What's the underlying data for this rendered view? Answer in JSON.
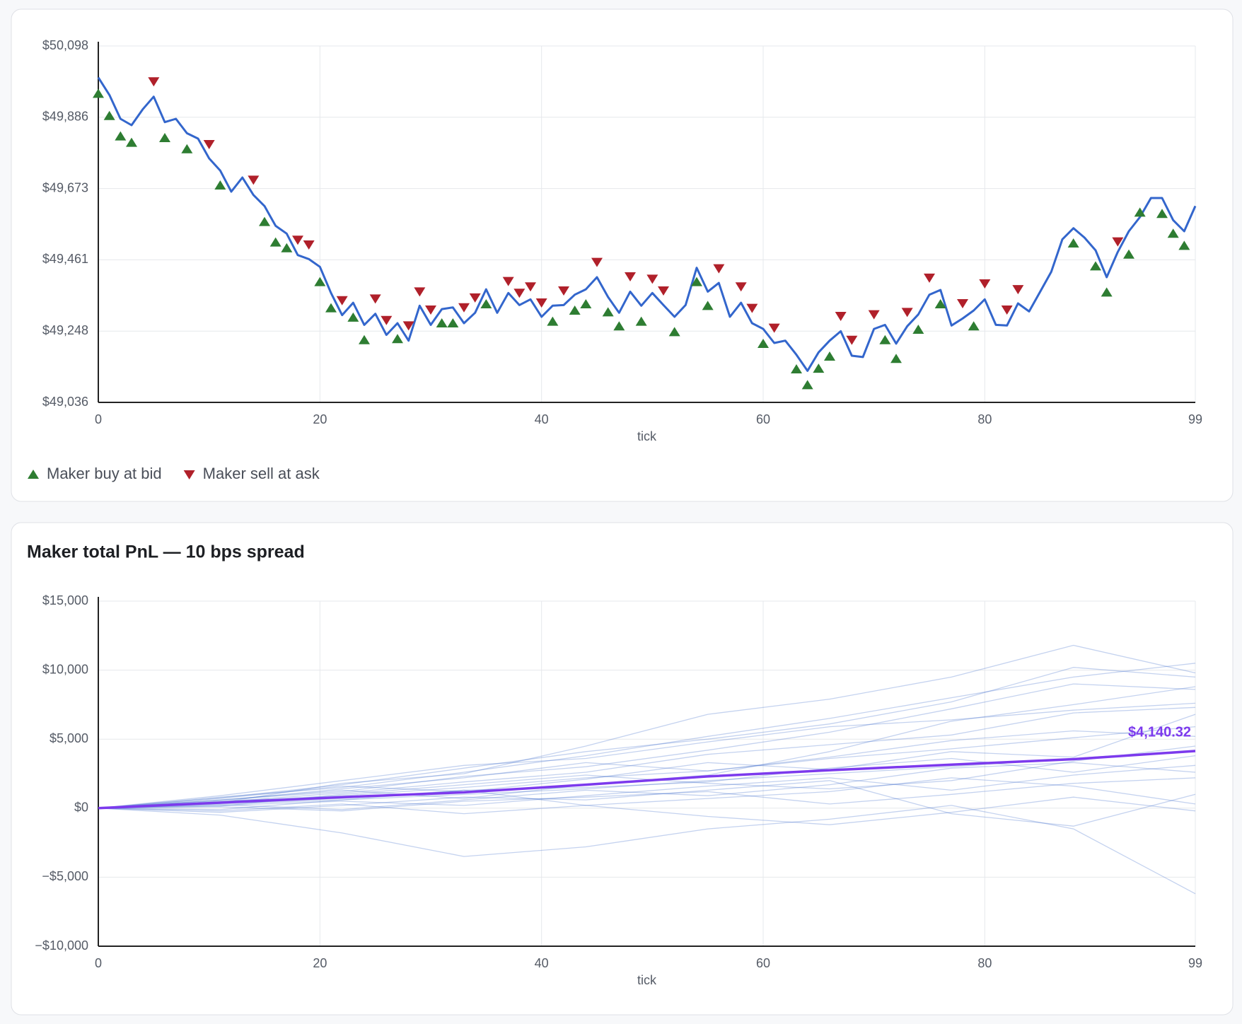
{
  "chart_data": [
    {
      "type": "line",
      "xlabel": "tick",
      "xlim": [
        0,
        99
      ],
      "xticks": [
        0,
        20,
        40,
        60,
        80,
        99
      ],
      "ylim": [
        49036,
        50098
      ],
      "yticks": [
        {
          "value": 49036,
          "label": "$49,036"
        },
        {
          "value": 49248.4,
          "label": "$49,248"
        },
        {
          "value": 49460.8,
          "label": "$49,461"
        },
        {
          "value": 49673.2,
          "label": "$49,673"
        },
        {
          "value": 49885.6,
          "label": "$49,886"
        },
        {
          "value": 50098,
          "label": "$50,098"
        }
      ],
      "grid": true,
      "legend": "bottom-left",
      "series": [
        {
          "type": "line",
          "color": "#3366cc",
          "x": [
            0,
            1,
            2,
            3,
            4,
            5,
            6,
            7,
            8,
            9,
            10,
            11,
            12,
            13,
            14,
            15,
            16,
            17,
            18,
            19,
            20,
            21,
            22,
            23,
            24,
            25,
            26,
            27,
            28,
            29,
            30,
            31,
            32,
            33,
            34,
            35,
            36,
            37,
            38,
            39,
            40,
            41,
            42,
            43,
            44,
            45,
            46,
            47,
            48,
            49,
            50,
            51,
            52,
            53,
            54,
            55,
            56,
            57,
            58,
            59,
            60,
            61,
            62,
            63,
            64,
            65,
            66,
            67,
            68,
            69,
            70,
            71,
            72,
            73,
            74,
            75,
            76,
            77,
            78,
            79,
            80,
            81,
            82,
            83,
            84,
            85,
            86,
            87,
            88,
            89,
            90,
            91,
            92,
            93,
            94,
            95,
            96,
            97,
            98,
            99
          ],
          "values": [
            50004,
            49952,
            49881,
            49862,
            49909,
            49947,
            49871,
            49881,
            49838,
            49822,
            49763,
            49727,
            49664,
            49706,
            49654,
            49621,
            49562,
            49539,
            49475,
            49463,
            49440,
            49362,
            49296,
            49333,
            49267,
            49300,
            49237,
            49272,
            49220,
            49324,
            49267,
            49314,
            49319,
            49272,
            49303,
            49373,
            49303,
            49362,
            49326,
            49343,
            49291,
            49324,
            49326,
            49357,
            49373,
            49409,
            49350,
            49303,
            49366,
            49324,
            49362,
            49326,
            49291,
            49326,
            49437,
            49366,
            49392,
            49291,
            49333,
            49272,
            49255,
            49213,
            49220,
            49178,
            49130,
            49185,
            49220,
            49248,
            49175,
            49171,
            49255,
            49267,
            49211,
            49263,
            49298,
            49357,
            49371,
            49265,
            49286,
            49310,
            49343,
            49267,
            49265,
            49331,
            49307,
            49366,
            49425,
            49522,
            49555,
            49527,
            49489,
            49409,
            49484,
            49546,
            49588,
            49645,
            49645,
            49579,
            49546,
            49621
          ]
        },
        {
          "name": "Maker buy at bid",
          "type": "scatter",
          "marker": "triangle-up",
          "color": "#2e7d32",
          "x": [
            0,
            1,
            2,
            3,
            6,
            8,
            11,
            15,
            16,
            17,
            20,
            21,
            23,
            24,
            27,
            31,
            32,
            35,
            41,
            43,
            44,
            46,
            47,
            49,
            52,
            54,
            55,
            60,
            63,
            64,
            65,
            66,
            71,
            72,
            74,
            76,
            79,
            88,
            90,
            91,
            93,
            94,
            96,
            97,
            98
          ],
          "values": [
            49956,
            49890,
            49829,
            49810,
            49824,
            49791,
            49683,
            49574,
            49513,
            49496,
            49395,
            49317,
            49289,
            49222,
            49225,
            49272,
            49272,
            49329,
            49277,
            49310,
            49329,
            49305,
            49263,
            49277,
            49246,
            49395,
            49324,
            49211,
            49135,
            49088,
            49137,
            49173,
            49222,
            49166,
            49253,
            49329,
            49263,
            49510,
            49442,
            49364,
            49477,
            49602,
            49598,
            49539,
            49503
          ]
        },
        {
          "name": "Maker sell at ask",
          "type": "scatter",
          "marker": "triangle-down",
          "color": "#b0202a",
          "x": [
            5,
            10,
            14,
            18,
            19,
            22,
            25,
            26,
            28,
            29,
            30,
            33,
            34,
            37,
            38,
            39,
            40,
            42,
            45,
            48,
            50,
            51,
            56,
            58,
            59,
            61,
            67,
            68,
            70,
            73,
            75,
            78,
            80,
            82,
            83,
            92
          ],
          "values": [
            49992,
            49805,
            49699,
            49520,
            49506,
            49340,
            49345,
            49281,
            49265,
            49366,
            49312,
            49319,
            49348,
            49397,
            49362,
            49381,
            49333,
            49369,
            49454,
            49411,
            49404,
            49369,
            49435,
            49381,
            49317,
            49258,
            49293,
            49222,
            49298,
            49305,
            49407,
            49331,
            49390,
            49312,
            49373,
            49515
          ]
        }
      ]
    },
    {
      "type": "line",
      "title": "Maker total PnL — 10 bps spread",
      "xlabel": "tick",
      "xlim": [
        0,
        99
      ],
      "xticks": [
        0,
        20,
        40,
        60,
        80,
        99
      ],
      "ylim": [
        -10000,
        15000
      ],
      "yticks": [
        {
          "value": -10000,
          "label": "−$10,000"
        },
        {
          "value": -5000,
          "label": "−$5,000"
        },
        {
          "value": 0,
          "label": "$0"
        },
        {
          "value": 5000,
          "label": "$5,000"
        },
        {
          "value": 10000,
          "label": "$10,000"
        },
        {
          "value": 15000,
          "label": "$15,000"
        }
      ],
      "grid": true,
      "annotations": [
        {
          "text": "$4,140.32",
          "x": 99,
          "y": 4140.32,
          "color": "#7c3aed"
        }
      ],
      "series": [
        {
          "type": "line",
          "color": "#3a6bc9",
          "opacity": 0.3,
          "x": [
            0,
            11,
            22,
            33,
            44,
            55,
            66,
            77,
            88,
            99
          ],
          "values": [
            0,
            300,
            600,
            1000,
            1400,
            2000,
            2500,
            3000,
            3600,
            4200
          ]
        },
        {
          "type": "line",
          "color": "#3a6bc9",
          "opacity": 0.3,
          "x": [
            0,
            11,
            22,
            33,
            44,
            55,
            66,
            77,
            88,
            99
          ],
          "values": [
            0,
            800,
            1500,
            2600,
            3800,
            5200,
            6500,
            8000,
            9500,
            10500
          ]
        },
        {
          "type": "line",
          "color": "#3a6bc9",
          "opacity": 0.3,
          "x": [
            0,
            11,
            22,
            33,
            44,
            55,
            66,
            77,
            88,
            99
          ],
          "values": [
            0,
            -500,
            -1800,
            -3500,
            -2800,
            -1500,
            -800,
            200,
            -1500,
            -6200
          ]
        },
        {
          "type": "line",
          "color": "#3a6bc9",
          "opacity": 0.3,
          "x": [
            0,
            11,
            22,
            33,
            44,
            55,
            66,
            77,
            88,
            99
          ],
          "values": [
            0,
            600,
            1200,
            2300,
            3000,
            4200,
            5500,
            7200,
            9000,
            8600
          ]
        },
        {
          "type": "line",
          "color": "#3a6bc9",
          "opacity": 0.3,
          "x": [
            0,
            11,
            22,
            33,
            44,
            55,
            66,
            77,
            88,
            99
          ],
          "values": [
            0,
            100,
            -200,
            500,
            800,
            1200,
            300,
            1000,
            1800,
            2200
          ]
        },
        {
          "type": "line",
          "color": "#3a6bc9",
          "opacity": 0.3,
          "x": [
            0,
            11,
            22,
            33,
            44,
            55,
            66,
            77,
            88,
            99
          ],
          "values": [
            0,
            400,
            1800,
            2500,
            4500,
            6800,
            7900,
            9500,
            11800,
            9800
          ]
        },
        {
          "type": "line",
          "color": "#3a6bc9",
          "opacity": 0.3,
          "x": [
            0,
            11,
            22,
            33,
            44,
            55,
            66,
            77,
            88,
            99
          ],
          "values": [
            0,
            -200,
            300,
            -400,
            200,
            -600,
            -1200,
            -300,
            800,
            -200
          ]
        },
        {
          "type": "line",
          "color": "#3a6bc9",
          "opacity": 0.3,
          "x": [
            0,
            11,
            22,
            33,
            44,
            55,
            66,
            77,
            88,
            99
          ],
          "values": [
            0,
            500,
            900,
            1500,
            2200,
            2700,
            3600,
            4300,
            5100,
            5900
          ]
        },
        {
          "type": "line",
          "color": "#3a6bc9",
          "opacity": 0.3,
          "x": [
            0,
            11,
            22,
            33,
            44,
            55,
            66,
            77,
            88,
            99
          ],
          "values": [
            0,
            700,
            1600,
            1200,
            2100,
            3300,
            2800,
            4100,
            3700,
            6800
          ]
        },
        {
          "type": "line",
          "color": "#3a6bc9",
          "opacity": 0.3,
          "x": [
            0,
            11,
            22,
            33,
            44,
            55,
            66,
            77,
            88,
            99
          ],
          "values": [
            0,
            200,
            500,
            200,
            900,
            1600,
            2200,
            1300,
            2400,
            3100
          ]
        },
        {
          "type": "line",
          "color": "#3a6bc9",
          "opacity": 0.3,
          "x": [
            0,
            11,
            22,
            33,
            44,
            55,
            66,
            77,
            88,
            99
          ],
          "values": [
            0,
            900,
            2000,
            3100,
            3600,
            4800,
            5900,
            6400,
            7100,
            7600
          ]
        },
        {
          "type": "line",
          "color": "#3a6bc9",
          "opacity": 0.3,
          "x": [
            0,
            11,
            22,
            33,
            44,
            55,
            66,
            77,
            88,
            99
          ],
          "values": [
            0,
            -300,
            200,
            800,
            600,
            1300,
            2000,
            -400,
            -1300,
            1000
          ]
        },
        {
          "type": "line",
          "color": "#3a6bc9",
          "opacity": 0.3,
          "x": [
            0,
            11,
            22,
            33,
            44,
            55,
            66,
            77,
            88,
            99
          ],
          "values": [
            0,
            450,
            1100,
            1900,
            2600,
            3900,
            4600,
            5300,
            6900,
            7300
          ]
        },
        {
          "type": "line",
          "color": "#3a6bc9",
          "opacity": 0.3,
          "x": [
            0,
            11,
            22,
            33,
            44,
            55,
            66,
            77,
            88,
            99
          ],
          "values": [
            0,
            350,
            700,
            1300,
            1500,
            1900,
            2900,
            3600,
            2600,
            3800
          ]
        },
        {
          "type": "line",
          "color": "#3a6bc9",
          "opacity": 0.3,
          "x": [
            0,
            11,
            22,
            33,
            44,
            55,
            66,
            77,
            88,
            99
          ],
          "values": [
            0,
            600,
            1300,
            700,
            1700,
            2400,
            4100,
            6300,
            7500,
            8800
          ]
        },
        {
          "type": "line",
          "color": "#3a6bc9",
          "opacity": 0.3,
          "x": [
            0,
            11,
            22,
            33,
            44,
            55,
            66,
            77,
            88,
            99
          ],
          "values": [
            0,
            150,
            1000,
            1700,
            2400,
            1800,
            1400,
            2000,
            3400,
            4500
          ]
        },
        {
          "type": "line",
          "color": "#3a6bc9",
          "opacity": 0.3,
          "x": [
            0,
            11,
            22,
            33,
            44,
            55,
            66,
            77,
            88,
            99
          ],
          "values": [
            0,
            550,
            1400,
            2200,
            3300,
            2700,
            3700,
            4900,
            5600,
            5200
          ]
        },
        {
          "type": "line",
          "color": "#3a6bc9",
          "opacity": 0.3,
          "x": [
            0,
            11,
            22,
            33,
            44,
            55,
            66,
            77,
            88,
            99
          ],
          "values": [
            0,
            250,
            -100,
            600,
            1300,
            900,
            1700,
            2900,
            3300,
            2600
          ]
        },
        {
          "type": "line",
          "color": "#3a6bc9",
          "opacity": 0.3,
          "x": [
            0,
            11,
            22,
            33,
            44,
            55,
            66,
            77,
            88,
            99
          ],
          "values": [
            0,
            750,
            1700,
            2900,
            4100,
            5000,
            6100,
            7700,
            10200,
            9500
          ]
        },
        {
          "type": "line",
          "color": "#3a6bc9",
          "opacity": 0.3,
          "x": [
            0,
            11,
            22,
            33,
            44,
            55,
            66,
            77,
            88,
            99
          ],
          "values": [
            0,
            -100,
            600,
            1300,
            200,
            700,
            1200,
            2200,
            1600,
            300
          ]
        },
        {
          "type": "line",
          "color": "#7c3aed",
          "width": 3.5,
          "x": [
            0,
            11,
            22,
            33,
            44,
            55,
            66,
            77,
            88,
            99
          ],
          "values": [
            0,
            400,
            800,
            1150,
            1700,
            2300,
            2750,
            3150,
            3550,
            4140.32
          ]
        }
      ]
    }
  ]
}
